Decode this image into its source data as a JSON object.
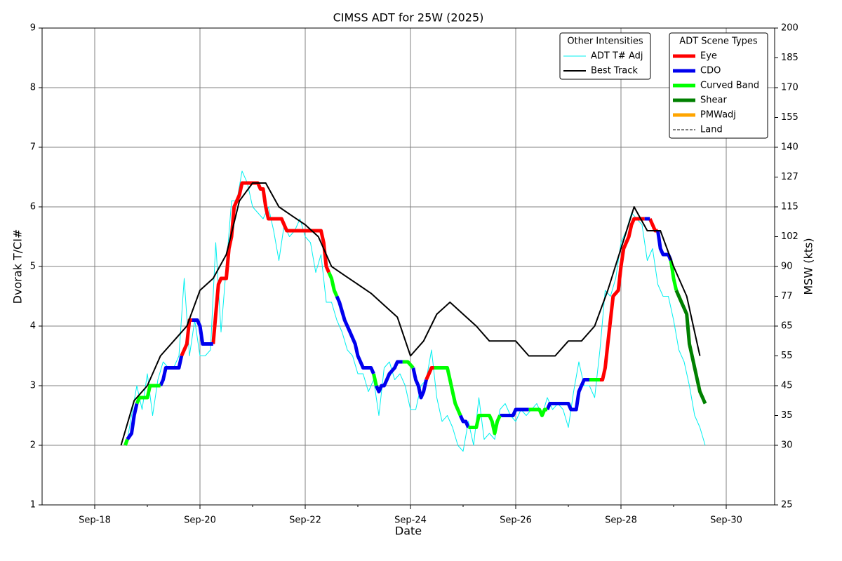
{
  "chart_data": {
    "type": "line",
    "title": "CIMSS ADT for 25W (2025)",
    "x_label": "Date",
    "y_label": "Dvorak T/CI#",
    "y2_label": "MSW (kts)",
    "xlim": [
      17,
      30.92
    ],
    "xticks": [
      {
        "value": 18,
        "label": "Sep-18"
      },
      {
        "value": 20,
        "label": "Sep-20"
      },
      {
        "value": 22,
        "label": "Sep-22"
      },
      {
        "value": 24,
        "label": "Sep-24"
      },
      {
        "value": 26,
        "label": "Sep-26"
      },
      {
        "value": 28,
        "label": "Sep-28"
      },
      {
        "value": 30,
        "label": "Sep-30"
      }
    ],
    "xminorticks": [
      19,
      21,
      23,
      25,
      27,
      29
    ],
    "ylim": [
      1,
      9
    ],
    "yticks": [
      1,
      2,
      3,
      4,
      5,
      6,
      7,
      8,
      9
    ],
    "y2lim": [
      25,
      200
    ],
    "y2ticks": [
      25,
      30,
      35,
      45,
      55,
      65,
      77,
      90,
      102,
      115,
      127,
      140,
      155,
      170,
      185,
      200
    ],
    "y2_t_equivalents": [
      1,
      2,
      2.5,
      3,
      3.5,
      4,
      4.5,
      5,
      5.5,
      6,
      6.5,
      7,
      7.5,
      8,
      8.5,
      9
    ],
    "grid": true,
    "other_legend_title": "Other Intensities",
    "scene_legend_title": "ADT Scene Types",
    "series": [
      {
        "name": "ADT T# Adj",
        "color": "#00f0f0",
        "width": 1,
        "x": [
          18.6,
          18.7,
          18.8,
          18.9,
          19.0,
          19.1,
          19.2,
          19.3,
          19.4,
          19.5,
          19.6,
          19.7,
          19.8,
          19.9,
          20.0,
          20.1,
          20.2,
          20.3,
          20.4,
          20.5,
          20.6,
          20.7,
          20.8,
          20.9,
          21.0,
          21.1,
          21.2,
          21.3,
          21.4,
          21.5,
          21.6,
          21.7,
          21.8,
          21.9,
          22.0,
          22.1,
          22.2,
          22.3,
          22.4,
          22.5,
          22.6,
          22.7,
          22.8,
          22.9,
          23.0,
          23.1,
          23.2,
          23.3,
          23.4,
          23.5,
          23.6,
          23.7,
          23.8,
          23.9,
          24.0,
          24.1,
          24.2,
          24.3,
          24.4,
          24.5,
          24.6,
          24.7,
          24.8,
          24.9,
          25.0,
          25.1,
          25.2,
          25.3,
          25.4,
          25.5,
          25.6,
          25.7,
          25.8,
          25.9,
          26.0,
          26.1,
          26.2,
          26.3,
          26.4,
          26.5,
          26.6,
          26.7,
          26.8,
          26.9,
          27.0,
          27.1,
          27.2,
          27.3,
          27.4,
          27.5,
          27.6,
          27.7,
          27.8,
          27.9,
          28.0,
          28.1,
          28.2,
          28.3,
          28.4,
          28.5,
          28.6,
          28.7,
          28.8,
          28.9,
          29.0,
          29.1,
          29.2,
          29.3,
          29.4,
          29.5,
          29.6
        ],
        "values": [
          2.0,
          2.5,
          3.0,
          2.6,
          3.2,
          2.5,
          3.1,
          3.4,
          3.3,
          3.3,
          3.5,
          4.8,
          3.5,
          4.1,
          3.5,
          3.5,
          3.6,
          5.4,
          3.9,
          5.0,
          6.1,
          6.1,
          6.6,
          6.4,
          6.0,
          5.9,
          5.8,
          6.0,
          5.6,
          5.1,
          5.7,
          5.5,
          5.6,
          5.8,
          5.5,
          5.4,
          4.9,
          5.2,
          4.4,
          4.4,
          4.1,
          3.9,
          3.6,
          3.5,
          3.2,
          3.2,
          2.9,
          3.1,
          2.5,
          3.3,
          3.4,
          3.1,
          3.2,
          3.0,
          2.6,
          2.6,
          3.0,
          3.1,
          3.6,
          2.8,
          2.4,
          2.5,
          2.3,
          2.0,
          1.9,
          2.4,
          2.0,
          2.8,
          2.1,
          2.2,
          2.1,
          2.6,
          2.7,
          2.5,
          2.4,
          2.6,
          2.5,
          2.6,
          2.7,
          2.5,
          2.8,
          2.6,
          2.7,
          2.6,
          2.3,
          2.9,
          3.4,
          3.0,
          3.0,
          2.8,
          3.6,
          4.6,
          4.5,
          4.8,
          5.4,
          5.6,
          5.9,
          5.8,
          5.7,
          5.1,
          5.3,
          4.7,
          4.5,
          4.5,
          4.1,
          3.6,
          3.4,
          3.0,
          2.5,
          2.3,
          2.0
        ]
      },
      {
        "name": "Best Track",
        "color": "#000000",
        "width": 2,
        "x": [
          18.5,
          18.75,
          19.0,
          19.25,
          19.5,
          19.75,
          20.0,
          20.25,
          20.5,
          20.75,
          21.0,
          21.25,
          21.5,
          21.75,
          22.0,
          22.25,
          22.5,
          22.75,
          23.0,
          23.25,
          23.5,
          23.75,
          24.0,
          24.25,
          24.5,
          24.75,
          25.0,
          25.25,
          25.5,
          25.75,
          26.0,
          26.25,
          26.5,
          26.75,
          27.0,
          27.25,
          27.5,
          27.75,
          28.0,
          28.25,
          28.5,
          28.75,
          29.0,
          29.25,
          29.5
        ],
        "values": [
          2.0,
          2.75,
          3.0,
          3.5,
          3.75,
          4.0,
          4.6,
          4.8,
          5.2,
          6.1,
          6.4,
          6.4,
          6.0,
          5.85,
          5.7,
          5.5,
          5.0,
          4.85,
          4.7,
          4.55,
          4.35,
          4.15,
          3.5,
          3.75,
          4.2,
          4.4,
          4.2,
          4.0,
          3.75,
          3.75,
          3.75,
          3.5,
          3.5,
          3.5,
          3.75,
          3.75,
          4.0,
          4.6,
          5.3,
          6.0,
          5.6,
          5.6,
          5.0,
          4.5,
          3.5
        ]
      }
    ],
    "scene_series": [
      {
        "name": "Eye",
        "color": "#ff0000",
        "x": [
          19.65,
          19.7,
          19.75,
          19.8,
          19.85,
          null,
          20.25,
          20.3,
          20.35,
          20.4,
          20.5,
          20.55,
          20.6,
          20.65,
          20.75,
          20.8,
          21.1,
          21.15,
          21.2,
          21.25,
          21.3,
          21.55,
          21.6,
          21.65,
          22.3,
          22.35,
          22.4,
          22.45,
          null,
          24.3,
          24.35,
          24.4,
          24.45,
          null,
          27.6,
          27.65,
          27.7,
          27.75,
          27.8,
          27.85,
          27.95,
          28.0,
          28.05,
          28.1,
          28.15,
          28.2,
          28.25,
          28.4,
          28.45,
          null,
          28.55,
          28.6,
          28.65,
          28.7
        ],
        "values": [
          3.5,
          3.6,
          3.7,
          4.1,
          4.1,
          null,
          3.7,
          4.2,
          4.7,
          4.8,
          4.8,
          5.3,
          5.5,
          6.0,
          6.2,
          6.4,
          6.4,
          6.3,
          6.3,
          6.0,
          5.8,
          5.8,
          5.7,
          5.6,
          5.6,
          5.4,
          5.0,
          4.9,
          null,
          3.1,
          3.2,
          3.3,
          3.3,
          null,
          3.1,
          3.1,
          3.3,
          3.7,
          4.1,
          4.5,
          4.6,
          5.0,
          5.3,
          5.4,
          5.5,
          5.7,
          5.8,
          5.8,
          5.8,
          null,
          5.8,
          5.7,
          5.6,
          5.6
        ]
      },
      {
        "name": "CDO",
        "color": "#0000ee",
        "x": [
          18.62,
          18.7,
          18.75,
          18.8,
          null,
          19.25,
          19.3,
          19.35,
          19.6,
          19.65,
          null,
          19.85,
          19.95,
          20.0,
          20.05,
          20.25,
          null,
          22.6,
          22.65,
          22.75,
          22.8,
          22.85,
          22.9,
          22.95,
          23.0,
          23.05,
          23.1,
          23.25,
          23.3,
          null,
          23.35,
          23.4,
          23.45,
          23.5,
          23.55,
          23.6,
          23.7,
          23.75,
          23.85,
          null,
          24.05,
          24.1,
          24.15,
          24.2,
          24.25,
          24.3,
          null,
          24.95,
          25.0,
          25.05,
          25.1,
          null,
          25.7,
          25.95,
          26.0,
          26.25,
          null,
          26.6,
          26.65,
          27.0,
          27.05,
          27.15,
          27.2,
          27.25,
          27.3,
          27.4,
          null,
          28.45,
          28.55,
          null,
          28.7,
          28.75,
          28.8,
          28.9,
          28.95
        ],
        "values": [
          2.1,
          2.2,
          2.5,
          2.7,
          null,
          3.0,
          3.1,
          3.3,
          3.3,
          3.5,
          null,
          4.1,
          4.1,
          4.0,
          3.7,
          3.7,
          null,
          4.5,
          4.4,
          4.1,
          4.0,
          3.9,
          3.8,
          3.7,
          3.5,
          3.4,
          3.3,
          3.3,
          3.2,
          null,
          3.0,
          2.9,
          3.0,
          3.0,
          3.1,
          3.2,
          3.3,
          3.4,
          3.4,
          null,
          3.3,
          3.1,
          3.0,
          2.8,
          2.9,
          3.1,
          null,
          2.5,
          2.4,
          2.4,
          2.3,
          null,
          2.5,
          2.5,
          2.6,
          2.6,
          null,
          2.6,
          2.7,
          2.7,
          2.6,
          2.6,
          2.9,
          3.0,
          3.1,
          3.1,
          null,
          5.8,
          5.8,
          null,
          5.6,
          5.3,
          5.2,
          5.2,
          5.1
        ]
      },
      {
        "name": "Curved Band",
        "color": "#00ff00",
        "x": [
          18.58,
          18.62,
          null,
          18.8,
          18.85,
          19.0,
          19.05,
          19.25,
          null,
          22.45,
          22.5,
          22.55,
          22.6,
          null,
          23.3,
          23.35,
          null,
          23.85,
          23.95,
          24.05,
          null,
          24.45,
          24.7,
          24.75,
          24.8,
          24.85,
          24.9,
          24.95,
          null,
          25.1,
          25.25,
          25.3,
          25.5,
          25.55,
          25.6,
          25.65,
          25.7,
          null,
          26.25,
          26.45,
          26.5,
          26.55,
          26.6,
          null,
          27.4,
          27.6,
          null,
          28.95,
          29.0,
          29.05
        ],
        "values": [
          2.0,
          2.1,
          null,
          2.7,
          2.8,
          2.8,
          3.0,
          3.0,
          null,
          4.9,
          4.8,
          4.6,
          4.5,
          null,
          3.2,
          3.0,
          null,
          3.4,
          3.4,
          3.3,
          null,
          3.3,
          3.3,
          3.1,
          2.9,
          2.7,
          2.6,
          2.5,
          null,
          2.3,
          2.3,
          2.5,
          2.5,
          2.4,
          2.2,
          2.4,
          2.5,
          null,
          2.6,
          2.6,
          2.5,
          2.6,
          2.6,
          null,
          3.1,
          3.1,
          null,
          5.1,
          4.8,
          4.6
        ]
      },
      {
        "name": "Shear",
        "color": "#008000",
        "x": [
          29.05,
          29.1,
          29.15,
          29.2,
          29.25,
          29.3,
          29.35,
          29.4,
          29.45,
          29.5,
          29.55,
          29.6
        ],
        "values": [
          4.6,
          4.5,
          4.4,
          4.3,
          4.2,
          3.7,
          3.5,
          3.3,
          3.1,
          2.9,
          2.8,
          2.7
        ]
      },
      {
        "name": "PMWadj",
        "color": "#ffa500",
        "x": [],
        "values": []
      },
      {
        "name": "Land",
        "color": "#000000",
        "linestyle": "dashed",
        "x": [],
        "values": []
      }
    ]
  }
}
